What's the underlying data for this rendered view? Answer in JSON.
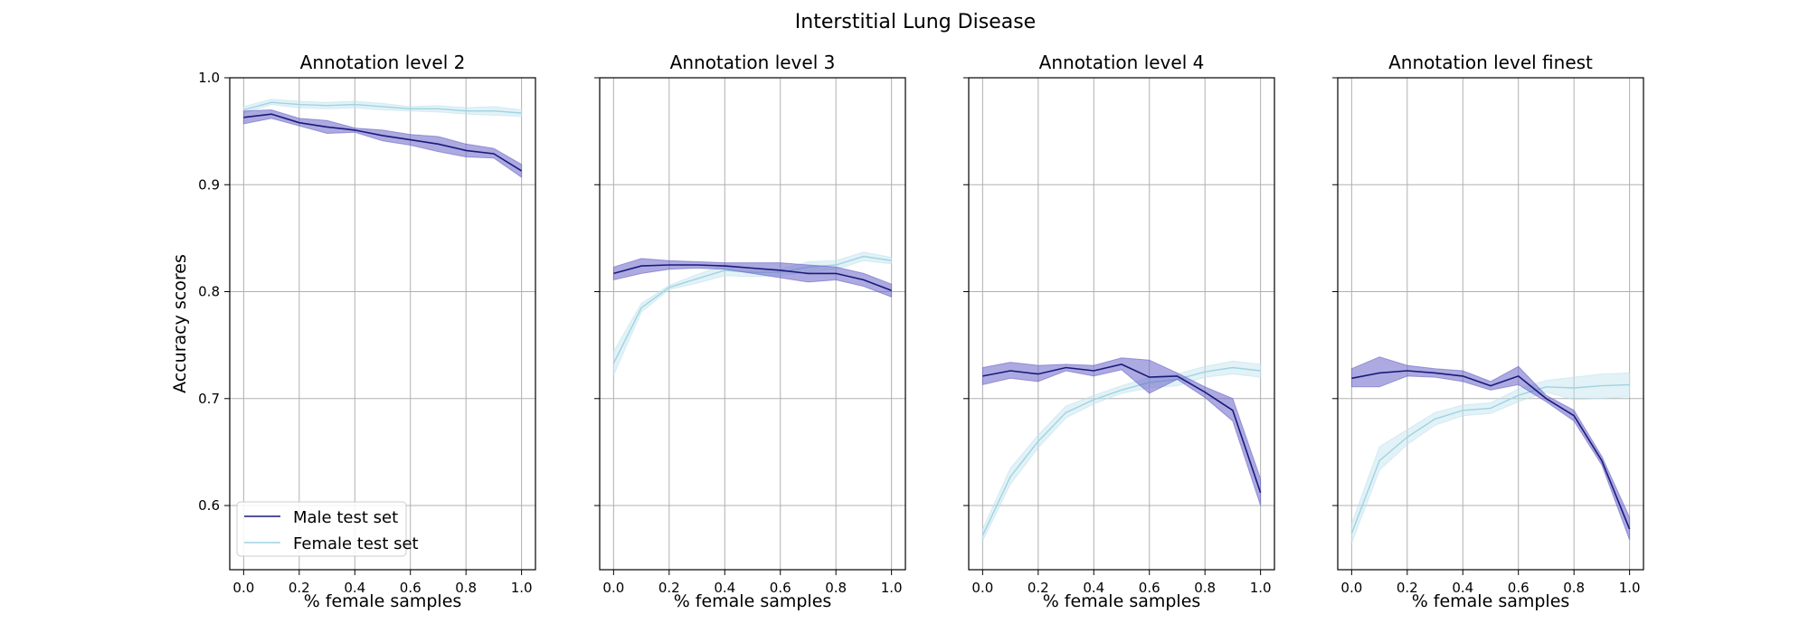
{
  "title": "Interstitial Lung Disease",
  "colors": {
    "male": "#1a1a7a",
    "male_band": "#6a65c8",
    "female": "#9fd3e2",
    "female_band": "#bfe3ee"
  },
  "chart_data": [
    {
      "type": "line",
      "title": "Annotation level 2",
      "xlabel": "% female samples",
      "ylabel": "Accuracy scores",
      "xlim": [
        -0.05,
        1.05
      ],
      "ylim": [
        0.54,
        1.0
      ],
      "grid": true,
      "legend_position": "lower-left",
      "x": [
        0.0,
        0.1,
        0.2,
        0.3,
        0.4,
        0.5,
        0.6,
        0.7,
        0.8,
        0.9,
        1.0
      ],
      "x_ticks": [
        "0.0",
        "0.2",
        "0.4",
        "0.6",
        "0.8",
        "1.0"
      ],
      "y_ticks": [
        "0.6",
        "0.7",
        "0.8",
        "0.9",
        "1.0"
      ],
      "series": [
        {
          "name": "Male test set",
          "values": [
            0.963,
            0.966,
            0.958,
            0.954,
            0.951,
            0.946,
            0.942,
            0.938,
            0.932,
            0.929,
            0.913
          ],
          "lower": [
            0.957,
            0.962,
            0.955,
            0.948,
            0.949,
            0.941,
            0.937,
            0.931,
            0.926,
            0.925,
            0.907
          ],
          "upper": [
            0.969,
            0.97,
            0.962,
            0.96,
            0.953,
            0.951,
            0.947,
            0.945,
            0.938,
            0.934,
            0.919
          ]
        },
        {
          "name": "Female test set",
          "values": [
            0.97,
            0.977,
            0.975,
            0.974,
            0.975,
            0.973,
            0.971,
            0.971,
            0.969,
            0.969,
            0.967
          ],
          "lower": [
            0.967,
            0.975,
            0.972,
            0.971,
            0.972,
            0.97,
            0.969,
            0.968,
            0.966,
            0.965,
            0.964
          ],
          "upper": [
            0.973,
            0.98,
            0.978,
            0.977,
            0.978,
            0.976,
            0.973,
            0.974,
            0.972,
            0.973,
            0.97
          ]
        }
      ]
    },
    {
      "type": "line",
      "title": "Annotation level 3",
      "xlabel": "% female samples",
      "ylabel": "",
      "xlim": [
        -0.05,
        1.05
      ],
      "ylim": [
        0.54,
        1.0
      ],
      "grid": true,
      "x": [
        0.0,
        0.1,
        0.2,
        0.3,
        0.4,
        0.5,
        0.6,
        0.7,
        0.8,
        0.9,
        1.0
      ],
      "x_ticks": [
        "0.0",
        "0.2",
        "0.4",
        "0.6",
        "0.8",
        "1.0"
      ],
      "y_ticks": [],
      "series": [
        {
          "name": "Male test set",
          "values": [
            0.817,
            0.824,
            0.825,
            0.825,
            0.824,
            0.822,
            0.82,
            0.817,
            0.817,
            0.811,
            0.801
          ],
          "lower": [
            0.811,
            0.817,
            0.821,
            0.822,
            0.821,
            0.817,
            0.813,
            0.809,
            0.811,
            0.805,
            0.795
          ],
          "upper": [
            0.823,
            0.831,
            0.829,
            0.828,
            0.827,
            0.827,
            0.827,
            0.825,
            0.823,
            0.817,
            0.807
          ]
        },
        {
          "name": "Female test set",
          "values": [
            0.733,
            0.785,
            0.804,
            0.812,
            0.82,
            0.818,
            0.818,
            0.823,
            0.825,
            0.833,
            0.829
          ],
          "lower": [
            0.722,
            0.781,
            0.802,
            0.808,
            0.815,
            0.814,
            0.815,
            0.818,
            0.821,
            0.829,
            0.826
          ],
          "upper": [
            0.744,
            0.789,
            0.806,
            0.816,
            0.825,
            0.822,
            0.821,
            0.828,
            0.829,
            0.837,
            0.832
          ]
        }
      ]
    },
    {
      "type": "line",
      "title": "Annotation level 4",
      "xlabel": "% female samples",
      "ylabel": "",
      "xlim": [
        -0.05,
        1.05
      ],
      "ylim": [
        0.54,
        1.0
      ],
      "grid": true,
      "x": [
        0.0,
        0.1,
        0.2,
        0.3,
        0.4,
        0.5,
        0.6,
        0.7,
        0.8,
        0.9,
        1.0
      ],
      "x_ticks": [
        "0.0",
        "0.2",
        "0.4",
        "0.6",
        "0.8",
        "1.0"
      ],
      "y_ticks": [],
      "series": [
        {
          "name": "Male test set",
          "values": [
            0.721,
            0.726,
            0.723,
            0.729,
            0.726,
            0.732,
            0.72,
            0.721,
            0.706,
            0.689,
            0.612
          ],
          "lower": [
            0.713,
            0.719,
            0.716,
            0.726,
            0.721,
            0.727,
            0.705,
            0.718,
            0.701,
            0.679,
            0.6
          ],
          "upper": [
            0.729,
            0.734,
            0.731,
            0.732,
            0.731,
            0.738,
            0.736,
            0.724,
            0.711,
            0.7,
            0.625
          ]
        },
        {
          "name": "Female test set",
          "values": [
            0.572,
            0.627,
            0.66,
            0.687,
            0.699,
            0.708,
            0.715,
            0.718,
            0.725,
            0.729,
            0.726
          ],
          "lower": [
            0.567,
            0.62,
            0.654,
            0.682,
            0.695,
            0.705,
            0.71,
            0.712,
            0.72,
            0.723,
            0.72
          ],
          "upper": [
            0.578,
            0.635,
            0.666,
            0.693,
            0.703,
            0.712,
            0.72,
            0.723,
            0.73,
            0.735,
            0.732
          ]
        }
      ]
    },
    {
      "type": "line",
      "title": "Annotation level finest",
      "xlabel": "% female samples",
      "ylabel": "",
      "xlim": [
        -0.05,
        1.05
      ],
      "ylim": [
        0.54,
        1.0
      ],
      "grid": true,
      "x": [
        0.0,
        0.1,
        0.2,
        0.3,
        0.4,
        0.5,
        0.6,
        0.7,
        0.8,
        0.9,
        1.0
      ],
      "x_ticks": [
        "0.0",
        "0.2",
        "0.4",
        "0.6",
        "0.8",
        "1.0"
      ],
      "y_ticks": [],
      "series": [
        {
          "name": "Male test set",
          "values": [
            0.719,
            0.724,
            0.726,
            0.724,
            0.721,
            0.712,
            0.721,
            0.7,
            0.684,
            0.642,
            0.578
          ],
          "lower": [
            0.711,
            0.711,
            0.721,
            0.72,
            0.716,
            0.708,
            0.713,
            0.697,
            0.679,
            0.638,
            0.568
          ],
          "upper": [
            0.728,
            0.739,
            0.731,
            0.728,
            0.726,
            0.716,
            0.73,
            0.703,
            0.689,
            0.646,
            0.589
          ]
        },
        {
          "name": "Female test set",
          "values": [
            0.574,
            0.642,
            0.664,
            0.681,
            0.689,
            0.691,
            0.703,
            0.711,
            0.71,
            0.712,
            0.713
          ],
          "lower": [
            0.565,
            0.633,
            0.657,
            0.675,
            0.684,
            0.686,
            0.697,
            0.706,
            0.699,
            0.7,
            0.702
          ],
          "upper": [
            0.583,
            0.655,
            0.671,
            0.687,
            0.694,
            0.696,
            0.709,
            0.717,
            0.72,
            0.723,
            0.724
          ]
        }
      ]
    }
  ]
}
